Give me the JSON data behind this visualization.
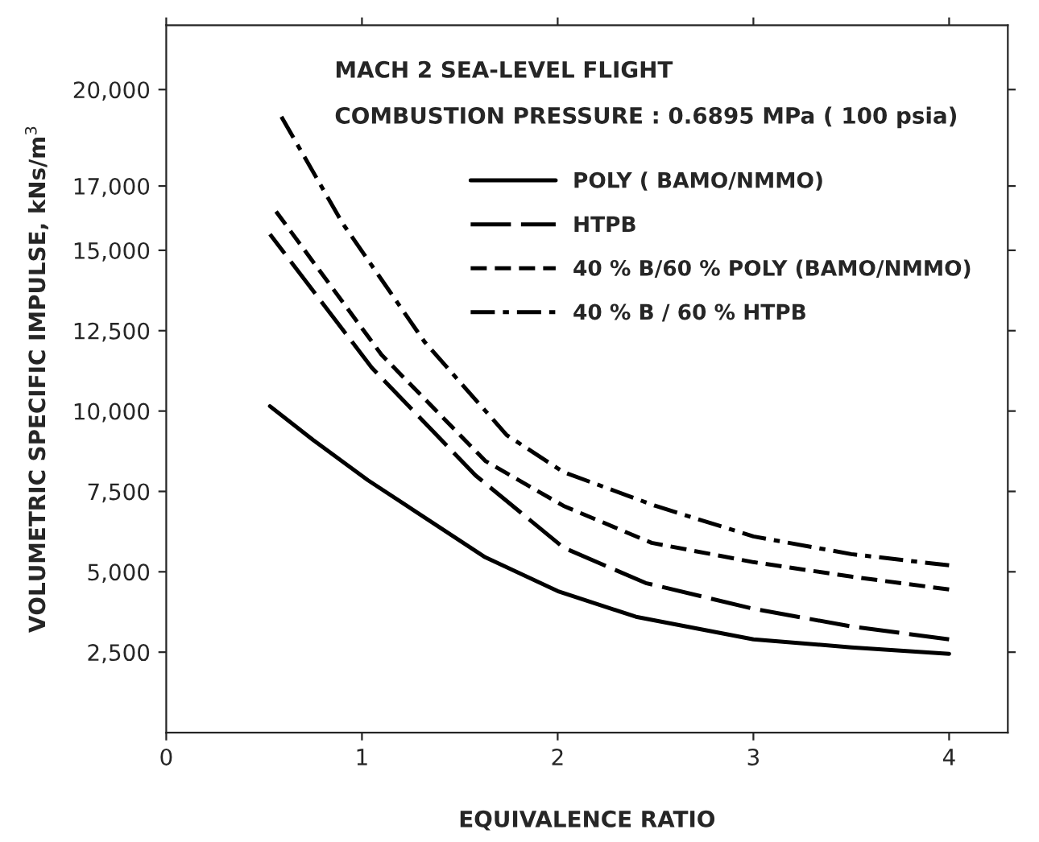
{
  "chart_data": {
    "type": "line",
    "xlabel": "EQUIVALENCE RATIO",
    "ylabel": "VOLUMETRIC SPECIFIC IMPULSE, kNs/m$^{3}$",
    "annotations": [
      "MACH 2 SEA-LEVEL FLIGHT",
      "COMBUSTION PRESSURE : 0.6895 MPa ( 100 psia)"
    ],
    "xlim": [
      0,
      4.3
    ],
    "xticks": [
      0,
      1,
      2,
      3,
      4
    ],
    "ylim": [
      0,
      22000
    ],
    "yticks": [
      {
        "value": 2500,
        "label": "2,500"
      },
      {
        "value": 5000,
        "label": "5,000"
      },
      {
        "value": 7500,
        "label": "7,500"
      },
      {
        "value": 10000,
        "label": "10,000"
      },
      {
        "value": 12500,
        "label": "12,500"
      },
      {
        "value": 15000,
        "label": "15,000"
      },
      {
        "value": 17000,
        "label": "17,000"
      },
      {
        "value": 20000,
        "label": "20,000"
      }
    ],
    "grid": false,
    "legend": "top right",
    "series": [
      {
        "name": "POLY ( BAMO/NMMO)",
        "color": "#000000",
        "line_style": "solid",
        "x": [
          0.53,
          0.75,
          1.03,
          1.63,
          2,
          2.4,
          3,
          3.5,
          4
        ],
        "values": [
          10150,
          9100,
          7850,
          5450,
          4400,
          3600,
          2900,
          2650,
          2450
        ]
      },
      {
        "name": "HTPB",
        "color": "#000000",
        "line_style": "longdash",
        "x": [
          0.53,
          1.05,
          1.58,
          2.03,
          2.45,
          3,
          3.5,
          4
        ],
        "values": [
          15500,
          11350,
          8000,
          5750,
          4650,
          3850,
          3300,
          2900
        ]
      },
      {
        "name": "40 % B/60 % POLY (BAMO/NMMO)",
        "color": "#000000",
        "line_style": "dashed",
        "x": [
          0.55,
          1.1,
          1.63,
          2.03,
          2.48,
          3,
          3.5,
          4
        ],
        "values": [
          16300,
          11750,
          8450,
          7050,
          5900,
          5300,
          4850,
          4450
        ]
      },
      {
        "name": "40 % B / 60 % HTPB",
        "color": "#000000",
        "line_style": "dashdot",
        "x": [
          0.57,
          0.9,
          1.32,
          1.74,
          2.03,
          2.5,
          3,
          3.5,
          4
        ],
        "values": [
          19350,
          15850,
          12150,
          9250,
          8100,
          7050,
          6100,
          5550,
          5200
        ]
      }
    ]
  }
}
